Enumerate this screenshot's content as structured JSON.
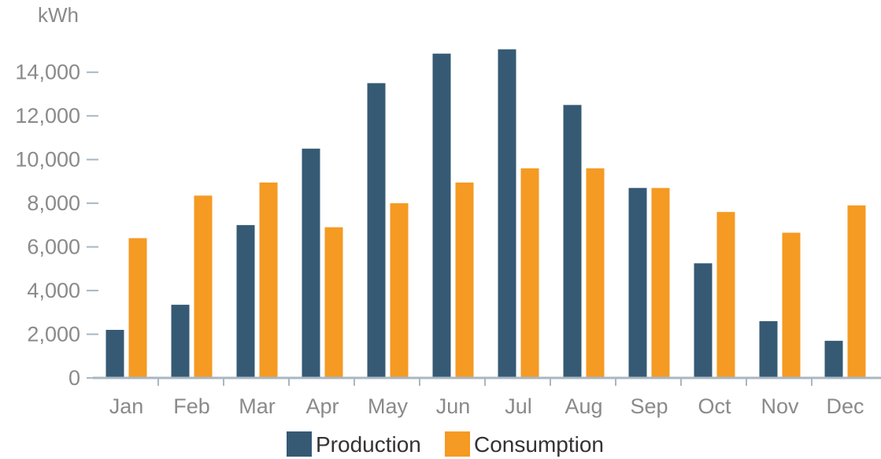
{
  "chart_data": {
    "type": "bar",
    "title": "",
    "ylabel": "kWh",
    "xlabel": "",
    "categories": [
      "Jan",
      "Feb",
      "Mar",
      "Apr",
      "May",
      "Jun",
      "Jul",
      "Aug",
      "Sep",
      "Oct",
      "Nov",
      "Dec"
    ],
    "series": [
      {
        "name": "Production",
        "color": "#365a74",
        "values": [
          2200,
          3350,
          7000,
          10500,
          13500,
          14850,
          15050,
          12500,
          8700,
          5250,
          2600,
          1700
        ]
      },
      {
        "name": "Consumption",
        "color": "#f59a23",
        "values": [
          6400,
          8350,
          8950,
          6900,
          8000,
          8950,
          9600,
          9600,
          8700,
          7600,
          6650,
          7900
        ]
      }
    ],
    "ylim": [
      0,
      15000
    ],
    "yticks": [
      0,
      2000,
      4000,
      6000,
      8000,
      10000,
      12000,
      14000
    ],
    "ytick_labels": [
      "0",
      "2,000",
      "4,000",
      "6,000",
      "8,000",
      "10,000",
      "12,000",
      "14,000"
    ],
    "grid": false,
    "legend_position": "bottom-center"
  }
}
